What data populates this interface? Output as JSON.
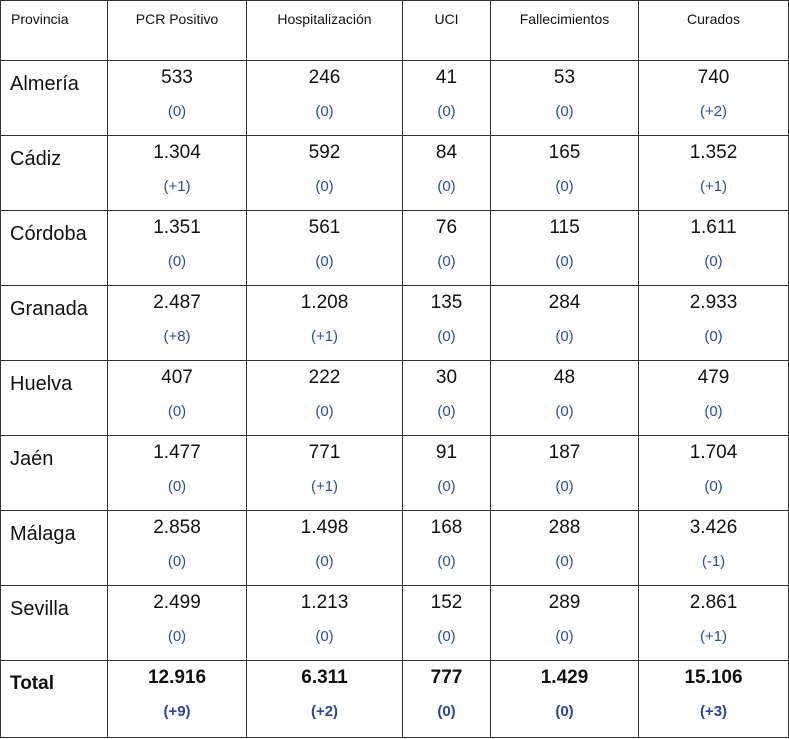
{
  "headers": [
    "Provincia",
    "PCR Positivo",
    "Hospitalización",
    "UCI",
    "Fallecimientos",
    "Curados"
  ],
  "rows": [
    {
      "name": "Almería",
      "cells": [
        {
          "value": "533",
          "delta": "(0)"
        },
        {
          "value": "246",
          "delta": "(0)"
        },
        {
          "value": "41",
          "delta": "(0)"
        },
        {
          "value": "53",
          "delta": "(0)"
        },
        {
          "value": "740",
          "delta": "(+2)"
        }
      ]
    },
    {
      "name": "Cádiz",
      "cells": [
        {
          "value": "1.304",
          "delta": "(+1)"
        },
        {
          "value": "592",
          "delta": "(0)"
        },
        {
          "value": "84",
          "delta": "(0)"
        },
        {
          "value": "165",
          "delta": "(0)"
        },
        {
          "value": "1.352",
          "delta": "(+1)"
        }
      ]
    },
    {
      "name": "Córdoba",
      "cells": [
        {
          "value": "1.351",
          "delta": "(0)"
        },
        {
          "value": "561",
          "delta": "(0)"
        },
        {
          "value": "76",
          "delta": "(0)"
        },
        {
          "value": "115",
          "delta": "(0)"
        },
        {
          "value": "1.611",
          "delta": "(0)"
        }
      ]
    },
    {
      "name": "Granada",
      "cells": [
        {
          "value": "2.487",
          "delta": "(+8)"
        },
        {
          "value": "1.208",
          "delta": "(+1)"
        },
        {
          "value": "135",
          "delta": "(0)"
        },
        {
          "value": "284",
          "delta": "(0)"
        },
        {
          "value": "2.933",
          "delta": "(0)"
        }
      ]
    },
    {
      "name": "Huelva",
      "cells": [
        {
          "value": "407",
          "delta": "(0)"
        },
        {
          "value": "222",
          "delta": "(0)"
        },
        {
          "value": "30",
          "delta": "(0)"
        },
        {
          "value": "48",
          "delta": "(0)"
        },
        {
          "value": "479",
          "delta": "(0)"
        }
      ]
    },
    {
      "name": "Jaén",
      "cells": [
        {
          "value": "1.477",
          "delta": "(0)"
        },
        {
          "value": "771",
          "delta": "(+1)"
        },
        {
          "value": "91",
          "delta": "(0)"
        },
        {
          "value": "187",
          "delta": "(0)"
        },
        {
          "value": "1.704",
          "delta": "(0)"
        }
      ]
    },
    {
      "name": "Málaga",
      "cells": [
        {
          "value": "2.858",
          "delta": "(0)"
        },
        {
          "value": "1.498",
          "delta": "(0)"
        },
        {
          "value": "168",
          "delta": "(0)"
        },
        {
          "value": "288",
          "delta": "(0)"
        },
        {
          "value": "3.426",
          "delta": "(-1)"
        }
      ]
    },
    {
      "name": "Sevilla",
      "cells": [
        {
          "value": "2.499",
          "delta": "(0)"
        },
        {
          "value": "1.213",
          "delta": "(0)"
        },
        {
          "value": "152",
          "delta": "(0)"
        },
        {
          "value": "289",
          "delta": "(0)"
        },
        {
          "value": "2.861",
          "delta": "(+1)"
        }
      ]
    }
  ],
  "total": {
    "name": "Total",
    "cells": [
      {
        "value": "12.916",
        "delta": "(+9)"
      },
      {
        "value": "6.311",
        "delta": "(+2)"
      },
      {
        "value": "777",
        "delta": "(0)"
      },
      {
        "value": "1.429",
        "delta": "(0)"
      },
      {
        "value": "15.106",
        "delta": "(+3)"
      }
    ]
  },
  "colors": {
    "delta": "#2b4fa0",
    "border": "#333333",
    "text": "#111111"
  }
}
